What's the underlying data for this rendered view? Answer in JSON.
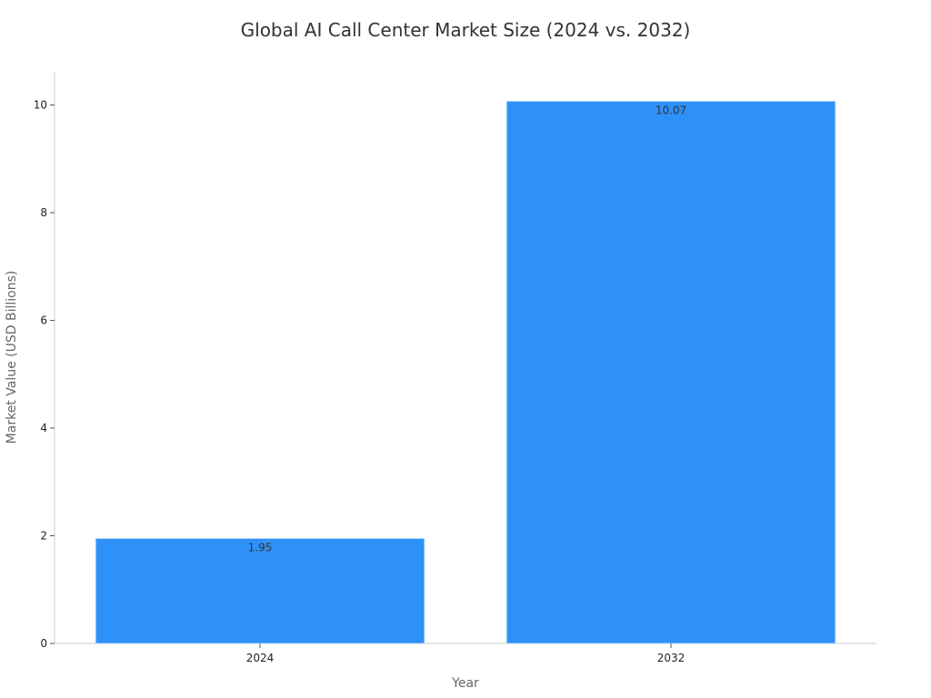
{
  "chart_data": {
    "type": "bar",
    "title": "Global AI Call Center Market Size (2024 vs. 2032)",
    "xlabel": "Year",
    "ylabel": "Market Value (USD Billions)",
    "categories": [
      "2024",
      "2032"
    ],
    "values": [
      1.95,
      10.07
    ],
    "data_labels": [
      "1.95",
      "10.07"
    ],
    "ylim": [
      0,
      10.6
    ],
    "yticks": [
      0,
      2,
      4,
      6,
      8,
      10
    ],
    "grid": false,
    "legend": "none",
    "bar_color": "#2e91f8"
  }
}
